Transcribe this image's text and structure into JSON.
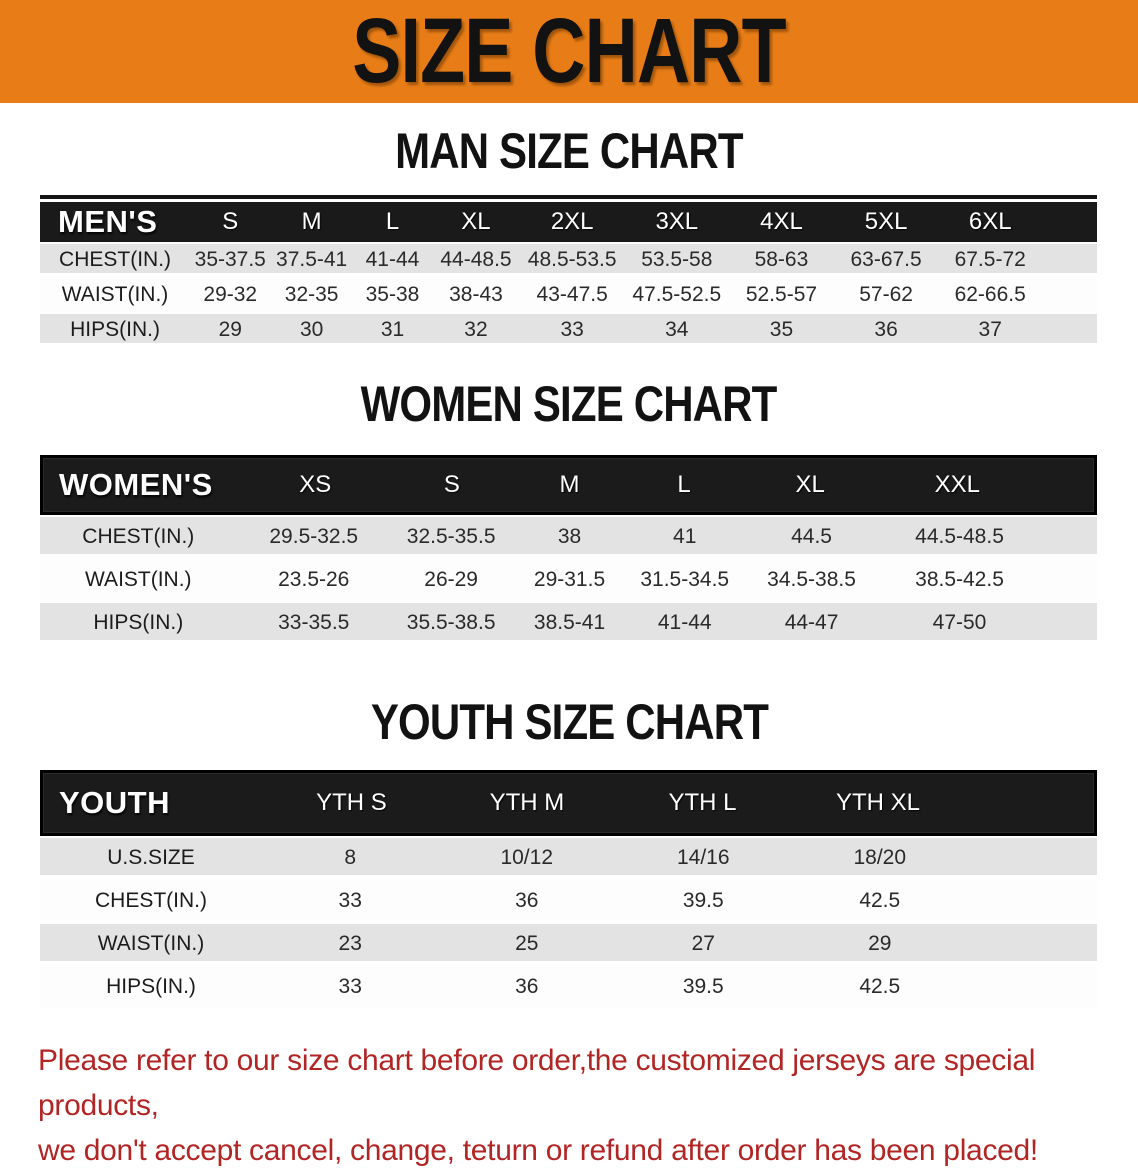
{
  "banner": {
    "title": "SIZE CHART"
  },
  "men": {
    "heading": "MAN SIZE CHART",
    "header": "MEN'S",
    "sizes": [
      "S",
      "M",
      "L",
      "XL",
      "2XL",
      "3XL",
      "4XL",
      "5XL",
      "6XL"
    ],
    "rows": [
      {
        "label": "CHEST(IN.)",
        "values": [
          "35-37.5",
          "37.5-41",
          "41-44",
          "44-48.5",
          "48.5-53.5",
          "53.5-58",
          "58-63",
          "63-67.5",
          "67.5-72"
        ]
      },
      {
        "label": "WAIST(IN.)",
        "values": [
          "29-32",
          "32-35",
          "35-38",
          "38-43",
          "43-47.5",
          "47.5-52.5",
          "52.5-57",
          "57-62",
          "62-66.5"
        ]
      },
      {
        "label": "HIPS(IN.)",
        "values": [
          "29",
          "30",
          "31",
          "32",
          "33",
          "34",
          "35",
          "36",
          "37"
        ]
      }
    ]
  },
  "women": {
    "heading": "WOMEN SIZE CHART",
    "header": "WOMEN'S",
    "sizes": [
      "XS",
      "S",
      "M",
      "L",
      "XL",
      "XXL"
    ],
    "rows": [
      {
        "label": "CHEST(IN.)",
        "values": [
          "29.5-32.5",
          "32.5-35.5",
          "38",
          "41",
          "44.5",
          "44.5-48.5"
        ]
      },
      {
        "label": "WAIST(IN.)",
        "values": [
          "23.5-26",
          "26-29",
          "29-31.5",
          "31.5-34.5",
          "34.5-38.5",
          "38.5-42.5"
        ]
      },
      {
        "label": "HIPS(IN.)",
        "values": [
          "33-35.5",
          "35.5-38.5",
          "38.5-41",
          "41-44",
          "44-47",
          "47-50"
        ]
      }
    ]
  },
  "youth": {
    "heading": "YOUTH SIZE CHART",
    "header": "YOUTH",
    "sizes": [
      "YTH S",
      "YTH M",
      "YTH L",
      "YTH XL"
    ],
    "rows": [
      {
        "label": "U.S.SIZE",
        "values": [
          "8",
          "10/12",
          "14/16",
          "18/20"
        ]
      },
      {
        "label": "CHEST(IN.)",
        "values": [
          "33",
          "36",
          "39.5",
          "42.5"
        ]
      },
      {
        "label": "WAIST(IN.)",
        "values": [
          "23",
          "25",
          "27",
          "29"
        ]
      },
      {
        "label": "HIPS(IN.)",
        "values": [
          "33",
          "36",
          "39.5",
          "42.5"
        ]
      }
    ]
  },
  "disclaimer": {
    "line1": "Please refer to our size chart before order,the customized jerseys are special products,",
    "line2": "we don't accept cancel, change, teturn or refund after order has been placed!"
  },
  "colors": {
    "banner_bg": "#E87D17",
    "header_bar": "#1A1A1A",
    "row_gray": "#E3E3E4",
    "disclaimer_red": "#B22525"
  }
}
